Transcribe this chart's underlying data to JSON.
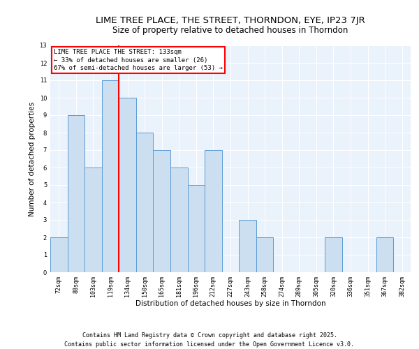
{
  "title1": "LIME TREE PLACE, THE STREET, THORNDON, EYE, IP23 7JR",
  "title2": "Size of property relative to detached houses in Thorndon",
  "xlabel": "Distribution of detached houses by size in Thorndon",
  "ylabel": "Number of detached properties",
  "categories": [
    "72sqm",
    "88sqm",
    "103sqm",
    "119sqm",
    "134sqm",
    "150sqm",
    "165sqm",
    "181sqm",
    "196sqm",
    "212sqm",
    "227sqm",
    "243sqm",
    "258sqm",
    "274sqm",
    "289sqm",
    "305sqm",
    "320sqm",
    "336sqm",
    "351sqm",
    "367sqm",
    "382sqm"
  ],
  "values": [
    2,
    9,
    6,
    11,
    10,
    8,
    7,
    6,
    5,
    7,
    0,
    3,
    2,
    0,
    0,
    0,
    2,
    0,
    0,
    2,
    0
  ],
  "bar_color": "#ccdff0",
  "bar_edge_color": "#5b9bd5",
  "vline_idx": 3.5,
  "annotation_text": "LIME TREE PLACE THE STREET: 133sqm\n← 33% of detached houses are smaller (26)\n67% of semi-detached houses are larger (53) →",
  "annotation_box_color": "white",
  "annotation_box_edge_color": "red",
  "vline_color": "red",
  "ylim_max": 13,
  "yticks": [
    0,
    1,
    2,
    3,
    4,
    5,
    6,
    7,
    8,
    9,
    10,
    11,
    12,
    13
  ],
  "footer1": "Contains HM Land Registry data © Crown copyright and database right 2025.",
  "footer2": "Contains public sector information licensed under the Open Government Licence v3.0.",
  "bg_color": "#eaf2fb",
  "grid_color": "white",
  "title_fontsize": 9.5,
  "subtitle_fontsize": 8.5,
  "axis_label_fontsize": 7.5,
  "tick_fontsize": 6,
  "annotation_fontsize": 6.5,
  "footer_fontsize": 6
}
